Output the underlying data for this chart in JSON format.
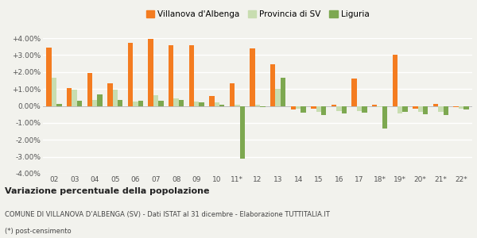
{
  "categories": [
    "02",
    "03",
    "04",
    "05",
    "06",
    "07",
    "08",
    "09",
    "10",
    "11*",
    "12",
    "13",
    "14",
    "15",
    "16",
    "17",
    "18*",
    "19*",
    "20*",
    "21*",
    "22*"
  ],
  "villanova": [
    3.45,
    1.05,
    1.95,
    1.35,
    3.7,
    3.95,
    3.6,
    3.6,
    0.6,
    1.35,
    3.4,
    2.45,
    -0.2,
    -0.15,
    0.05,
    1.6,
    0.05,
    3.0,
    -0.15,
    0.1,
    -0.05
  ],
  "provincia_sv": [
    1.65,
    0.95,
    0.35,
    0.95,
    0.25,
    0.65,
    0.45,
    0.25,
    0.2,
    0.05,
    0.05,
    1.0,
    -0.15,
    -0.35,
    -0.3,
    -0.3,
    -0.05,
    -0.45,
    -0.35,
    -0.35,
    -0.15
  ],
  "liguria": [
    0.1,
    0.3,
    0.7,
    0.35,
    0.3,
    0.3,
    0.35,
    0.2,
    0.05,
    -3.1,
    -0.05,
    1.65,
    -0.4,
    -0.55,
    -0.45,
    -0.4,
    -1.35,
    -0.35,
    -0.5,
    -0.55,
    -0.2
  ],
  "color_villanova": "#f47c20",
  "color_provincia": "#c8ddb0",
  "color_liguria": "#7da850",
  "ylim_min": -4.0,
  "ylim_max": 4.0,
  "yticks": [
    -4.0,
    -3.0,
    -2.0,
    -1.0,
    0.0,
    1.0,
    2.0,
    3.0,
    4.0
  ],
  "title_bold": "Variazione percentuale della popolazione",
  "subtitle": "COMUNE DI VILLANOVA D’ALBENGA (SV) - Dati ISTAT al 31 dicembre - Elaborazione TUTTITALIA.IT",
  "footnote": "(*) post-censimento",
  "legend_labels": [
    "Villanova d'Albenga",
    "Provincia di SV",
    "Liguria"
  ],
  "background_color": "#f2f2ed",
  "grid_color": "#ffffff"
}
